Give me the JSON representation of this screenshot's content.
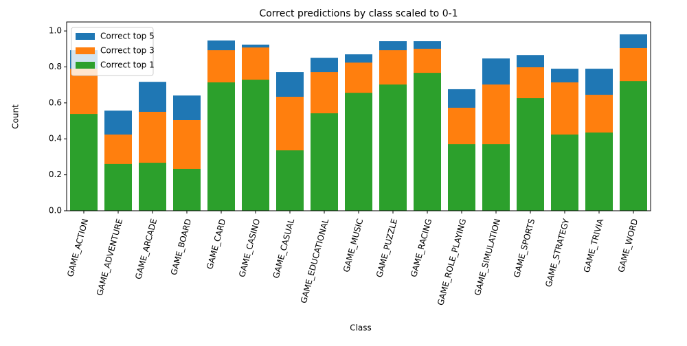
{
  "chart_data": {
    "type": "bar",
    "title": "Correct predictions by class scaled to 0-1",
    "xlabel": "Class",
    "ylabel": "Count",
    "categories": [
      "GAME_ACTION",
      "GAME_ADVENTURE",
      "GAME_ARCADE",
      "GAME_BOARD",
      "GAME_CARD",
      "GAME_CASINO",
      "GAME_CASUAL",
      "GAME_EDUCATIONAL",
      "GAME_MUSIC",
      "GAME_PUZZLE",
      "GAME_RACING",
      "GAME_ROLE_PLAYING",
      "GAME_SIMULATION",
      "GAME_SPORTS",
      "GAME_STRATEGY",
      "GAME_TRIVIA",
      "GAME_WORD"
    ],
    "series": [
      {
        "name": "Correct top 5",
        "color": "#1f77b4",
        "values": [
          0.893,
          0.557,
          0.717,
          0.641,
          0.947,
          0.924,
          0.771,
          0.851,
          0.87,
          0.943,
          0.943,
          0.676,
          0.847,
          0.866,
          0.79,
          0.79,
          0.981
        ]
      },
      {
        "name": "Correct top 3",
        "color": "#ff7f0e",
        "values": [
          0.79,
          0.424,
          0.55,
          0.504,
          0.893,
          0.908,
          0.634,
          0.771,
          0.824,
          0.893,
          0.901,
          0.573,
          0.702,
          0.798,
          0.714,
          0.645,
          0.905
        ]
      },
      {
        "name": "Correct top 1",
        "color": "#2ca02c",
        "values": [
          0.538,
          0.26,
          0.267,
          0.233,
          0.714,
          0.729,
          0.336,
          0.542,
          0.656,
          0.702,
          0.767,
          0.37,
          0.37,
          0.626,
          0.424,
          0.435,
          0.721
        ]
      }
    ],
    "ylim": [
      0,
      1.05
    ],
    "yticks": [
      {
        "value": 0,
        "label": "0.0"
      },
      0.2,
      0.4,
      0.6,
      0.8,
      {
        "value": 1,
        "label": "1.0"
      }
    ],
    "legend": "upper left"
  }
}
